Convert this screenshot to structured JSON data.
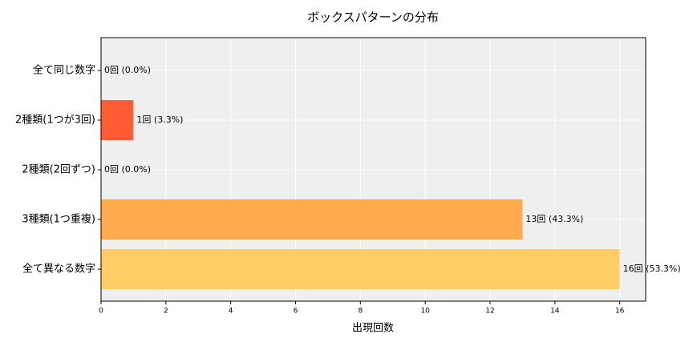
{
  "chart_data": {
    "type": "barh",
    "title": "ボックスパターンの分布",
    "xlabel": "出現回数",
    "categories": [
      "全て同じ数字",
      "2種類(1つが3回)",
      "2種類(2回ずつ)",
      "3種類(1つ重複)",
      "全て異なる数字"
    ],
    "values": [
      0,
      1,
      0,
      13,
      16
    ],
    "value_labels": [
      "0回 (0.0%)",
      "1回 (3.3%)",
      "0回 (0.0%)",
      "13回 (43.3%)",
      "16回 (53.3%)"
    ],
    "colors": [
      "#ff3d33",
      "#ff5c33",
      "#ff8c42",
      "#ffaa4c",
      "#ffcc66"
    ],
    "xlim": [
      0,
      16.8
    ],
    "xticks": [
      0,
      2,
      4,
      6,
      8,
      10,
      12,
      14,
      16
    ],
    "grid": true
  }
}
